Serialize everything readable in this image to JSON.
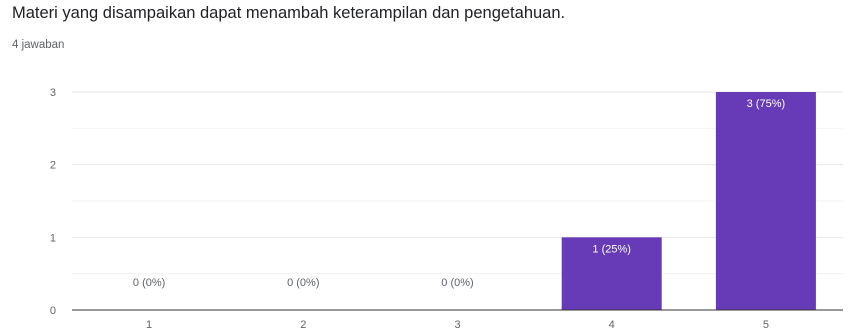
{
  "question": {
    "title": "Materi yang disampaikan dapat menambah keterampilan dan pengetahuan.",
    "responses": "4 jawaban"
  },
  "colors": {
    "bar": "#673ab7",
    "gridline": "#e8e8e8",
    "baseline": "#333333",
    "label_on_bar": "#ffffff",
    "label_off_bar": "#5f6368"
  },
  "chart_data": {
    "type": "bar",
    "categories": [
      "1",
      "2",
      "3",
      "4",
      "5"
    ],
    "values": [
      0,
      0,
      0,
      1,
      3
    ],
    "data_labels": [
      "0 (0%)",
      "0 (0%)",
      "0 (0%)",
      "1 (25%)",
      "3 (75%)"
    ],
    "ylim": [
      0,
      3
    ],
    "yticks": [
      0,
      1,
      2,
      3
    ],
    "grid": true,
    "legend": "none"
  }
}
